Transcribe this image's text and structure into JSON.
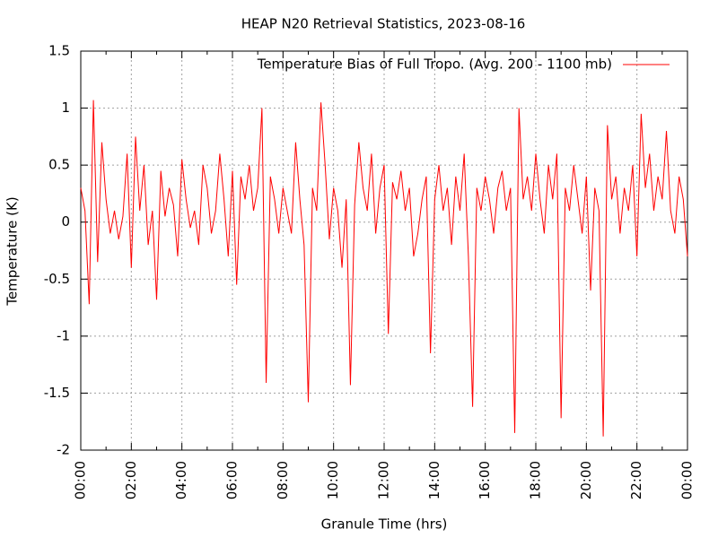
{
  "chart_data": {
    "type": "line",
    "title": "HEAP N20 Retrieval Statistics, 2023-08-16",
    "x_label": "Granule Time (hrs)",
    "y_label": "Temperature (K)",
    "legend_position": "top-right",
    "grid": true,
    "xlim": [
      0,
      1440
    ],
    "xticks": [
      {
        "value": 0,
        "label": "00:00"
      },
      {
        "value": 120,
        "label": "02:00"
      },
      {
        "value": 240,
        "label": "04:00"
      },
      {
        "value": 360,
        "label": "06:00"
      },
      {
        "value": 480,
        "label": "08:00"
      },
      {
        "value": 600,
        "label": "10:00"
      },
      {
        "value": 720,
        "label": "12:00"
      },
      {
        "value": 840,
        "label": "14:00"
      },
      {
        "value": 960,
        "label": "16:00"
      },
      {
        "value": 1080,
        "label": "18:00"
      },
      {
        "value": 1200,
        "label": "20:00"
      },
      {
        "value": 1320,
        "label": "22:00"
      },
      {
        "value": 1440,
        "label": "00:00"
      }
    ],
    "ylim": [
      -2,
      1.5
    ],
    "yticks": [
      -2,
      -1.5,
      -1,
      -0.5,
      0,
      0.5,
      1,
      1.5
    ],
    "x": [
      0,
      10,
      20,
      30,
      40,
      50,
      60,
      70,
      80,
      90,
      100,
      110,
      120,
      130,
      140,
      150,
      160,
      170,
      180,
      190,
      200,
      210,
      220,
      230,
      240,
      250,
      260,
      270,
      280,
      290,
      300,
      310,
      320,
      330,
      340,
      350,
      360,
      370,
      380,
      390,
      400,
      410,
      420,
      430,
      440,
      450,
      460,
      470,
      480,
      490,
      500,
      510,
      520,
      530,
      540,
      550,
      560,
      570,
      580,
      590,
      600,
      610,
      620,
      630,
      640,
      650,
      660,
      670,
      680,
      690,
      700,
      710,
      720,
      730,
      740,
      750,
      760,
      770,
      780,
      790,
      800,
      810,
      820,
      830,
      840,
      850,
      860,
      870,
      880,
      890,
      900,
      910,
      920,
      930,
      940,
      950,
      960,
      970,
      980,
      990,
      1000,
      1010,
      1020,
      1030,
      1040,
      1050,
      1060,
      1070,
      1080,
      1090,
      1100,
      1110,
      1120,
      1130,
      1140,
      1150,
      1160,
      1170,
      1180,
      1190,
      1200,
      1210,
      1220,
      1230,
      1240,
      1250,
      1260,
      1270,
      1280,
      1290,
      1300,
      1310,
      1320,
      1330,
      1340,
      1350,
      1360,
      1370,
      1380,
      1390,
      1400,
      1410,
      1420,
      1430,
      1440
    ],
    "series": [
      {
        "name": "Temperature Bias of Full Tropo. (Avg. 200 - 1100 mb)",
        "color": "#ff0000",
        "values": [
          0.3,
          0.1,
          -0.72,
          1.07,
          -0.35,
          0.7,
          0.2,
          -0.1,
          0.1,
          -0.15,
          0.05,
          0.6,
          -0.4,
          0.75,
          0.1,
          0.5,
          -0.2,
          0.1,
          -0.68,
          0.45,
          0.05,
          0.3,
          0.15,
          -0.3,
          0.55,
          0.2,
          -0.05,
          0.1,
          -0.2,
          0.5,
          0.3,
          -0.1,
          0.1,
          0.6,
          0.2,
          -0.3,
          0.45,
          -0.55,
          0.4,
          0.2,
          0.5,
          0.1,
          0.3,
          1.0,
          -1.41,
          0.4,
          0.2,
          -0.1,
          0.3,
          0.1,
          -0.1,
          0.7,
          0.2,
          -0.2,
          -1.58,
          0.3,
          0.1,
          1.05,
          0.5,
          -0.15,
          0.3,
          0.1,
          -0.4,
          0.2,
          -1.43,
          0.15,
          0.7,
          0.3,
          0.1,
          0.6,
          -0.1,
          0.3,
          0.5,
          -0.98,
          0.35,
          0.2,
          0.45,
          0.1,
          0.3,
          -0.3,
          -0.1,
          0.2,
          0.4,
          -1.15,
          0.2,
          0.5,
          0.1,
          0.3,
          -0.2,
          0.4,
          0.1,
          0.6,
          -0.3,
          -1.62,
          0.3,
          0.1,
          0.4,
          0.2,
          -0.1,
          0.3,
          0.45,
          0.1,
          0.3,
          -1.85,
          1.0,
          0.2,
          0.4,
          0.1,
          0.6,
          0.2,
          -0.1,
          0.5,
          0.2,
          0.6,
          -1.72,
          0.3,
          0.1,
          0.5,
          0.2,
          -0.1,
          0.4,
          -0.6,
          0.3,
          0.1,
          -1.88,
          0.85,
          0.2,
          0.4,
          -0.1,
          0.3,
          0.1,
          0.5,
          -0.3,
          0.95,
          0.3,
          0.6,
          0.1,
          0.4,
          0.2,
          0.8,
          0.1,
          -0.1,
          0.4,
          0.2,
          -0.3
        ]
      }
    ]
  }
}
